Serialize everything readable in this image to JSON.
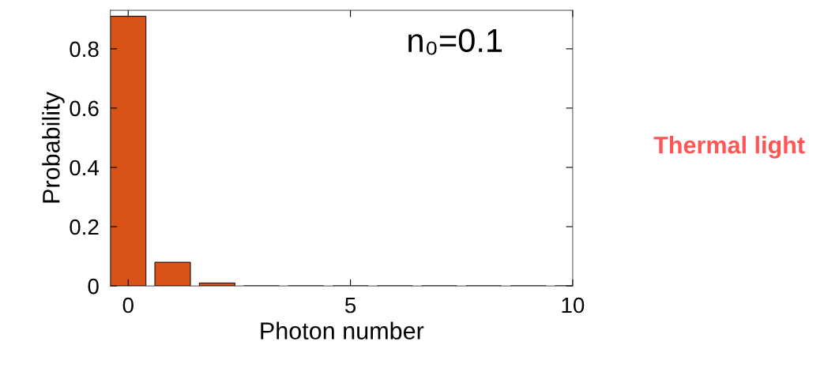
{
  "chart_data": {
    "type": "bar",
    "xlabel": "Photon number",
    "ylabel": "Probability",
    "x": [
      0,
      1,
      2,
      3,
      4,
      5,
      6,
      7,
      8,
      9,
      10
    ],
    "values": [
      0.91,
      0.08,
      0.01,
      0,
      0,
      0,
      0,
      0,
      0,
      0,
      0
    ],
    "color": "#d95319",
    "xlim": [
      -0.4,
      10
    ],
    "xticks": [
      0,
      5,
      10
    ],
    "ylim": [
      0,
      0.93
    ],
    "yticks": [
      0,
      0.2,
      0.4,
      0.6,
      0.8
    ],
    "grid": false,
    "annotations": [
      "n₀=0.1",
      "Thermal light"
    ]
  }
}
